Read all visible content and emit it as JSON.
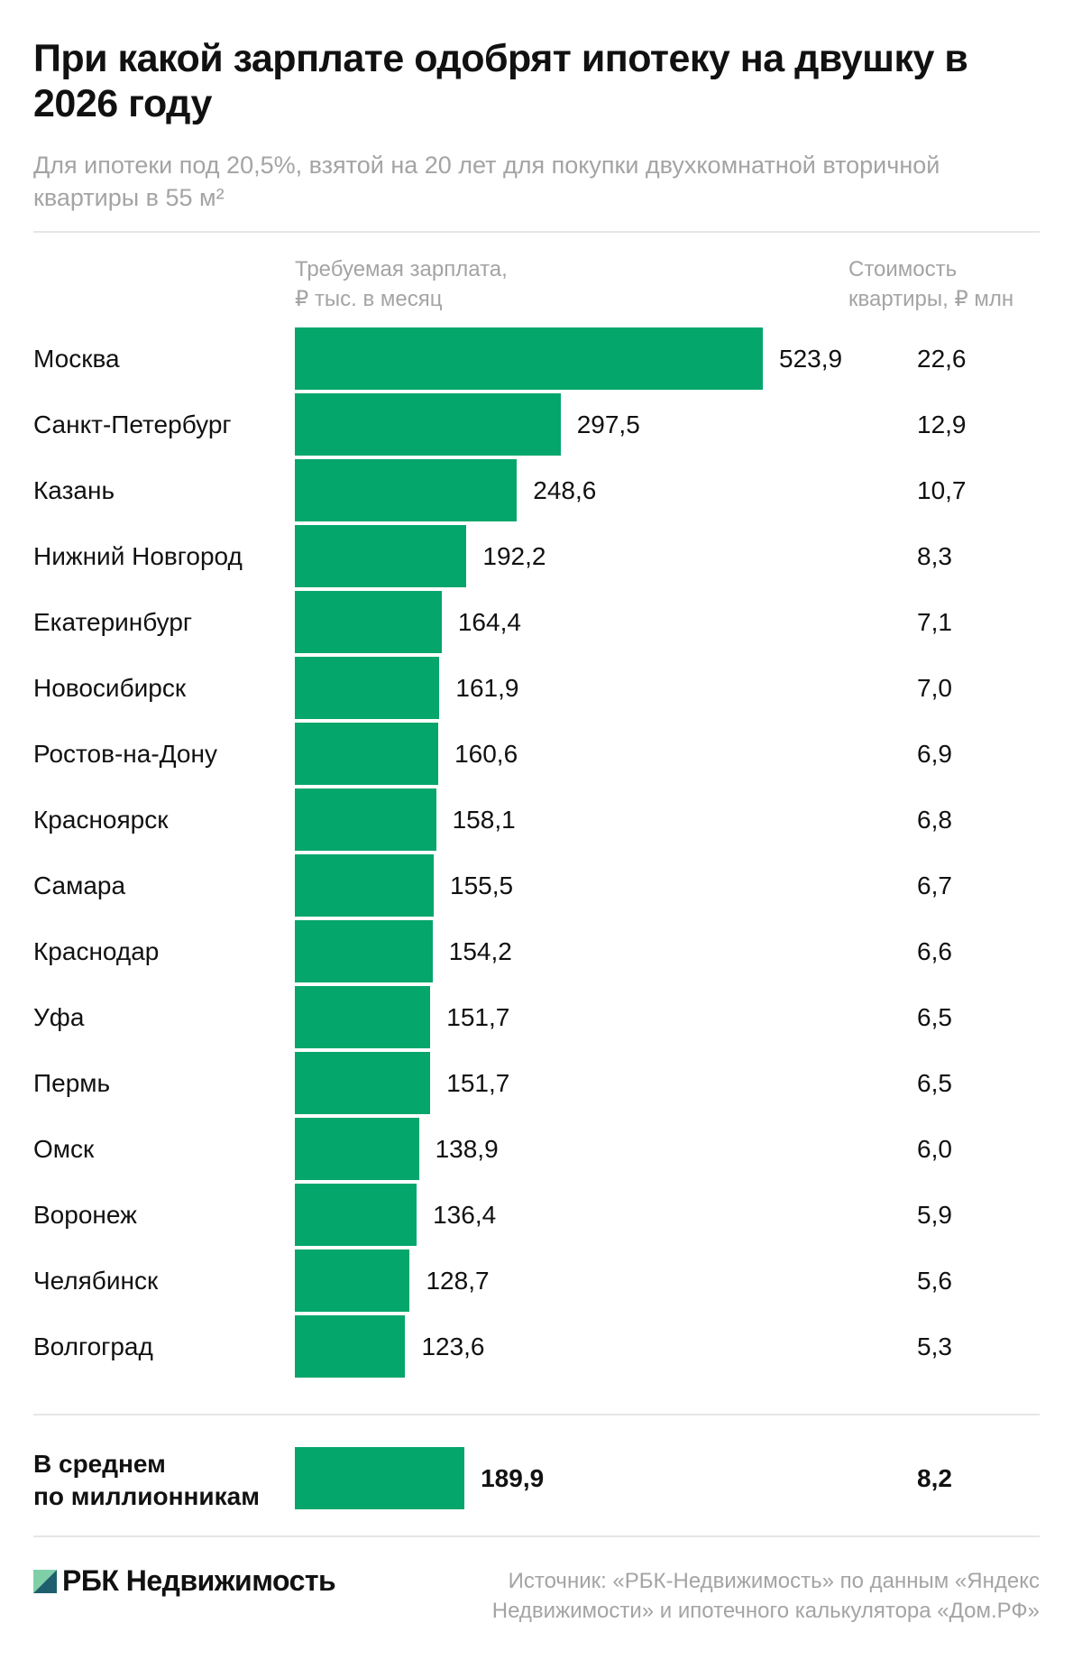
{
  "title": "При какой зарплате одобрят ипотеку на двушку в 2026 году",
  "subtitle": "Для ипотеки под 20,5%, взятой на 20 лет для покупки двухкомнатной вторичной квартиры в 55 м²",
  "chart_data": {
    "type": "bar",
    "orientation": "horizontal",
    "bar_color": "#05a66b",
    "column_headers": {
      "salary_line1": "Требуемая зарплата,",
      "salary_line2": "₽ тыс. в месяц",
      "price_line1": "Стоимость",
      "price_line2": "квартиры, ₽ млн"
    },
    "rows": [
      {
        "city": "Москва",
        "salary": 523.9,
        "salary_label": "523,9",
        "price": 22.6,
        "price_label": "22,6"
      },
      {
        "city": "Санкт-Петербург",
        "salary": 297.5,
        "salary_label": "297,5",
        "price": 12.9,
        "price_label": "12,9"
      },
      {
        "city": "Казань",
        "salary": 248.6,
        "salary_label": "248,6",
        "price": 10.7,
        "price_label": "10,7"
      },
      {
        "city": "Нижний Новгород",
        "salary": 192.2,
        "salary_label": "192,2",
        "price": 8.3,
        "price_label": "8,3"
      },
      {
        "city": "Екатеринбург",
        "salary": 164.4,
        "salary_label": "164,4",
        "price": 7.1,
        "price_label": "7,1"
      },
      {
        "city": "Новосибирск",
        "salary": 161.9,
        "salary_label": "161,9",
        "price": 7.0,
        "price_label": "7,0"
      },
      {
        "city": "Ростов-на-Дону",
        "salary": 160.6,
        "salary_label": "160,6",
        "price": 6.9,
        "price_label": "6,9"
      },
      {
        "city": "Красноярск",
        "salary": 158.1,
        "salary_label": "158,1",
        "price": 6.8,
        "price_label": "6,8"
      },
      {
        "city": "Самара",
        "salary": 155.5,
        "salary_label": "155,5",
        "price": 6.7,
        "price_label": "6,7"
      },
      {
        "city": "Краснодар",
        "salary": 154.2,
        "salary_label": "154,2",
        "price": 6.6,
        "price_label": "6,6"
      },
      {
        "city": "Уфа",
        "salary": 151.7,
        "salary_label": "151,7",
        "price": 6.5,
        "price_label": "6,5"
      },
      {
        "city": "Пермь",
        "salary": 151.7,
        "salary_label": "151,7",
        "price": 6.5,
        "price_label": "6,5"
      },
      {
        "city": "Омск",
        "salary": 138.9,
        "salary_label": "138,9",
        "price": 6.0,
        "price_label": "6,0"
      },
      {
        "city": "Воронеж",
        "salary": 136.4,
        "salary_label": "136,4",
        "price": 5.9,
        "price_label": "5,9"
      },
      {
        "city": "Челябинск",
        "salary": 128.7,
        "salary_label": "128,7",
        "price": 5.6,
        "price_label": "5,6"
      },
      {
        "city": "Волгоград",
        "salary": 123.6,
        "salary_label": "123,6",
        "price": 5.3,
        "price_label": "5,3"
      }
    ],
    "average": {
      "label_line1": "В среднем",
      "label_line2": "по миллионникам",
      "salary": 189.9,
      "salary_label": "189,9",
      "price": 8.2,
      "price_label": "8,2"
    }
  },
  "footer": {
    "logo_text": "РБК Недвижимость",
    "logo_colors": [
      "#05a66b",
      "#1e5f6e"
    ],
    "source": "Источник: «РБК-Недвижимость» по данным «Яндекс Недвижимости» и ипотечного калькулятора «Дом.РФ»"
  }
}
